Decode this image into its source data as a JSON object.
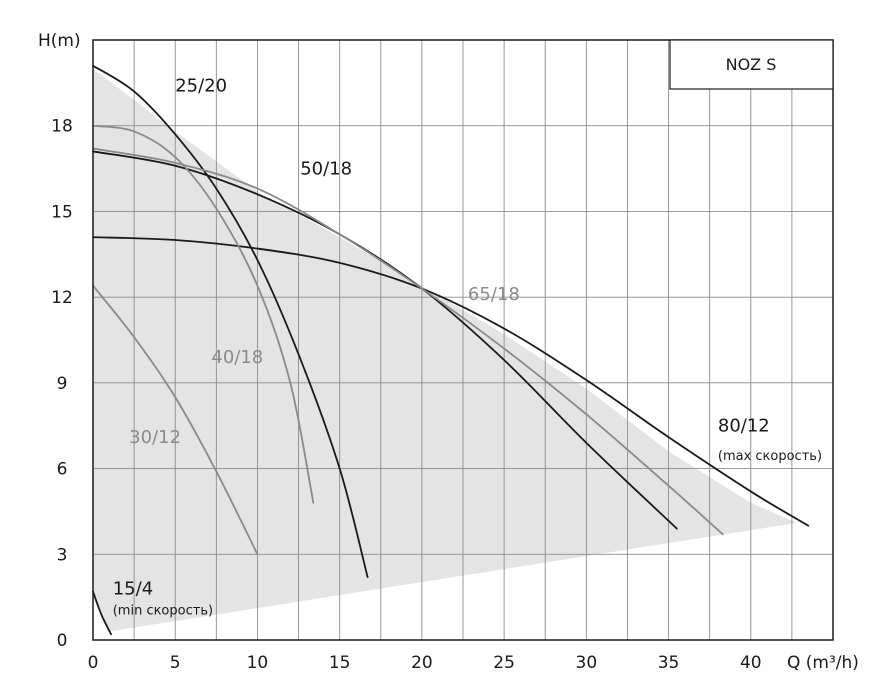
{
  "chart_data": {
    "type": "line",
    "title": "NOZ S",
    "xlabel": "Q (m³/h)",
    "ylabel": "H(m)",
    "xlim": [
      0,
      45
    ],
    "ylim": [
      0,
      21
    ],
    "x_ticks": [
      "0",
      "5",
      "10",
      "15",
      "20",
      "25",
      "30",
      "35",
      "40"
    ],
    "y_ticks": [
      "0",
      "3",
      "6",
      "9",
      "12",
      "15",
      "18"
    ],
    "grid": true,
    "operating_area": {
      "points": [
        [
          0,
          20.0
        ],
        [
          5,
          17.8
        ],
        [
          10,
          15.7
        ],
        [
          15,
          14.1
        ],
        [
          20,
          12.4
        ],
        [
          25,
          10.7
        ],
        [
          30,
          8.8
        ],
        [
          35,
          6.6
        ],
        [
          40,
          4.8
        ],
        [
          42.8,
          4.1
        ],
        [
          1,
          0.3
        ],
        [
          0,
          1.5
        ]
      ],
      "color": "#e4e4e4"
    },
    "series": [
      {
        "name": "25/20",
        "color": "#1a1a1a",
        "points": [
          [
            0,
            20.1
          ],
          [
            2.5,
            19.2
          ],
          [
            5,
            17.7
          ],
          [
            7.5,
            15.8
          ],
          [
            10,
            13.3
          ],
          [
            12.5,
            10.0
          ],
          [
            15,
            6.0
          ],
          [
            16.7,
            2.2
          ]
        ]
      },
      {
        "name": "50/18",
        "color": "#1a1a1a",
        "points": [
          [
            0,
            17.1
          ],
          [
            5,
            16.6
          ],
          [
            10,
            15.6
          ],
          [
            15,
            14.2
          ],
          [
            20,
            12.3
          ],
          [
            25,
            9.8
          ],
          [
            30,
            6.9
          ],
          [
            35.5,
            3.9
          ]
        ]
      },
      {
        "name": "80/12",
        "color": "#1a1a1a",
        "points": [
          [
            0,
            14.1
          ],
          [
            5,
            14.0
          ],
          [
            10,
            13.7
          ],
          [
            15,
            13.2
          ],
          [
            20,
            12.3
          ],
          [
            25,
            10.9
          ],
          [
            30,
            9.1
          ],
          [
            35,
            7.1
          ],
          [
            40,
            5.2
          ],
          [
            43.5,
            4.0
          ]
        ]
      },
      {
        "name": "65/18",
        "color": "#8a8a8a",
        "points": [
          [
            0,
            17.2
          ],
          [
            5,
            16.7
          ],
          [
            10,
            15.8
          ],
          [
            15,
            14.2
          ],
          [
            20,
            12.3
          ],
          [
            25,
            10.2
          ],
          [
            30,
            7.9
          ],
          [
            35,
            5.4
          ],
          [
            38.3,
            3.7
          ]
        ]
      },
      {
        "name": "40/18",
        "color": "#8a8a8a",
        "points": [
          [
            0,
            18.0
          ],
          [
            2.5,
            17.8
          ],
          [
            5,
            16.9
          ],
          [
            7.5,
            15.1
          ],
          [
            10,
            12.4
          ],
          [
            12,
            9.0
          ],
          [
            13.4,
            4.8
          ]
        ]
      },
      {
        "name": "30/12",
        "color": "#8a8a8a",
        "points": [
          [
            0,
            12.4
          ],
          [
            2.5,
            10.6
          ],
          [
            5,
            8.5
          ],
          [
            7.5,
            5.9
          ],
          [
            10,
            3.0
          ]
        ]
      },
      {
        "name": "15/4",
        "color": "#1a1a1a",
        "points": [
          [
            0,
            1.7
          ],
          [
            0.5,
            0.9
          ],
          [
            1.1,
            0.2
          ]
        ]
      }
    ],
    "labels": [
      {
        "text": "25/20",
        "at": [
          5.0,
          19.2
        ],
        "color": "#1a1a1a"
      },
      {
        "text": "50/18",
        "at": [
          12.6,
          16.3
        ],
        "color": "#1a1a1a"
      },
      {
        "text": "65/18",
        "at": [
          22.8,
          11.9
        ],
        "color": "#8a8a8a"
      },
      {
        "text": "40/18",
        "at": [
          7.2,
          9.7
        ],
        "color": "#8a8a8a"
      },
      {
        "text": "30/12",
        "at": [
          2.2,
          6.9
        ],
        "color": "#8a8a8a"
      },
      {
        "text": "80/12",
        "at": [
          38.0,
          7.3
        ],
        "color": "#1a1a1a"
      },
      {
        "text": "15/4",
        "at": [
          1.2,
          1.6
        ],
        "color": "#1a1a1a"
      }
    ],
    "notes": [
      {
        "text": "(max скорость)",
        "at": [
          38.0,
          6.3
        ]
      },
      {
        "text": "(min скорость)",
        "at": [
          1.2,
          0.9
        ]
      }
    ]
  }
}
